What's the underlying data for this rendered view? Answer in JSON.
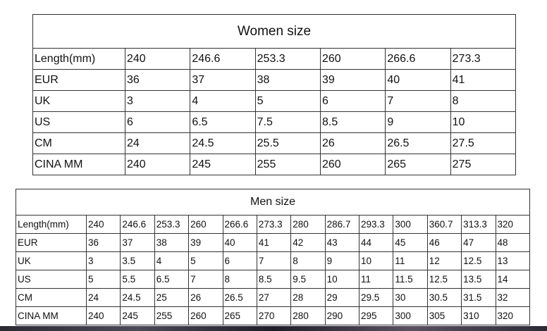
{
  "women": {
    "title": "Women size",
    "rows": [
      {
        "label": "Length(mm)",
        "values": [
          "240",
          "246.6",
          "253.3",
          "260",
          "266.6",
          "273.3"
        ]
      },
      {
        "label": "EUR",
        "values": [
          "36",
          "37",
          "38",
          "39",
          "40",
          "41"
        ]
      },
      {
        "label": "UK",
        "values": [
          "3",
          "4",
          "5",
          "6",
          "7",
          "8"
        ]
      },
      {
        "label": "US",
        "values": [
          "6",
          "6.5",
          "7.5",
          "8.5",
          "9",
          "10"
        ]
      },
      {
        "label": "CM",
        "values": [
          "24",
          "24.5",
          "25.5",
          "26",
          "26.5",
          "27.5"
        ]
      },
      {
        "label": "CINA MM",
        "values": [
          "240",
          "245",
          "255",
          "260",
          "265",
          "275"
        ]
      }
    ]
  },
  "men": {
    "title": "Men size",
    "rows": [
      {
        "label": "Length(mm)",
        "values": [
          "240",
          "246.6",
          "253.3",
          "260",
          "266.6",
          "273.3",
          "280",
          "286.7",
          "293.3",
          "300",
          "360.7",
          "313.3",
          "320"
        ]
      },
      {
        "label": "EUR",
        "values": [
          "36",
          "37",
          "38",
          "39",
          "40",
          "41",
          "42",
          "43",
          "44",
          "45",
          "46",
          "47",
          "48"
        ]
      },
      {
        "label": "UK",
        "values": [
          "3",
          "3.5",
          "4",
          "5",
          "6",
          "7",
          "8",
          "9",
          "10",
          "11",
          "12",
          "12.5",
          "13"
        ]
      },
      {
        "label": "US",
        "values": [
          "5",
          "5.5",
          "6.5",
          "7",
          "8",
          "8.5",
          "9.5",
          "10",
          "11",
          "11.5",
          "12.5",
          "13.5",
          "14"
        ]
      },
      {
        "label": "CM",
        "values": [
          "24",
          "24.5",
          "25",
          "26",
          "26.5",
          "27",
          "28",
          "29",
          "29.5",
          "30",
          "30.5",
          "31.5",
          "32"
        ]
      },
      {
        "label": "CINA MM",
        "values": [
          "240",
          "245",
          "255",
          "260",
          "265",
          "270",
          "280",
          "290",
          "295",
          "300",
          "305",
          "310",
          "320"
        ]
      }
    ]
  }
}
